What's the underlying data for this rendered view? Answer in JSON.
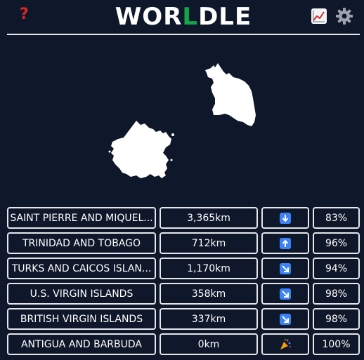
{
  "header": {
    "help_icon": "?",
    "title_start": "WOR",
    "title_accent": "L",
    "title_end": "DLE",
    "accent_color": "#16a34a",
    "help_color": "#dc2626",
    "stats_icon": "chart-increasing-icon",
    "settings_icon": "gear-icon"
  },
  "map": {
    "shape_icon": "antigua-and-barbuda-silhouette"
  },
  "guesses": [
    {
      "name": "SAINT PIERRE AND MIQUEL...",
      "distance": "3,365km",
      "direction": "down",
      "percent": "83%"
    },
    {
      "name": "TRINIDAD AND TOBAGO",
      "distance": "712km",
      "direction": "up",
      "percent": "96%"
    },
    {
      "name": "TURKS AND CAICOS ISLAN...",
      "distance": "1,170km",
      "direction": "down-right",
      "percent": "94%"
    },
    {
      "name": "U.S. VIRGIN ISLANDS",
      "distance": "358km",
      "direction": "down-right",
      "percent": "98%"
    },
    {
      "name": "BRITISH VIRGIN ISLANDS",
      "distance": "337km",
      "direction": "down-right",
      "percent": "98%"
    },
    {
      "name": "ANTIGUA AND BARBUDA",
      "distance": "0km",
      "direction": "party",
      "percent": "100%"
    }
  ]
}
